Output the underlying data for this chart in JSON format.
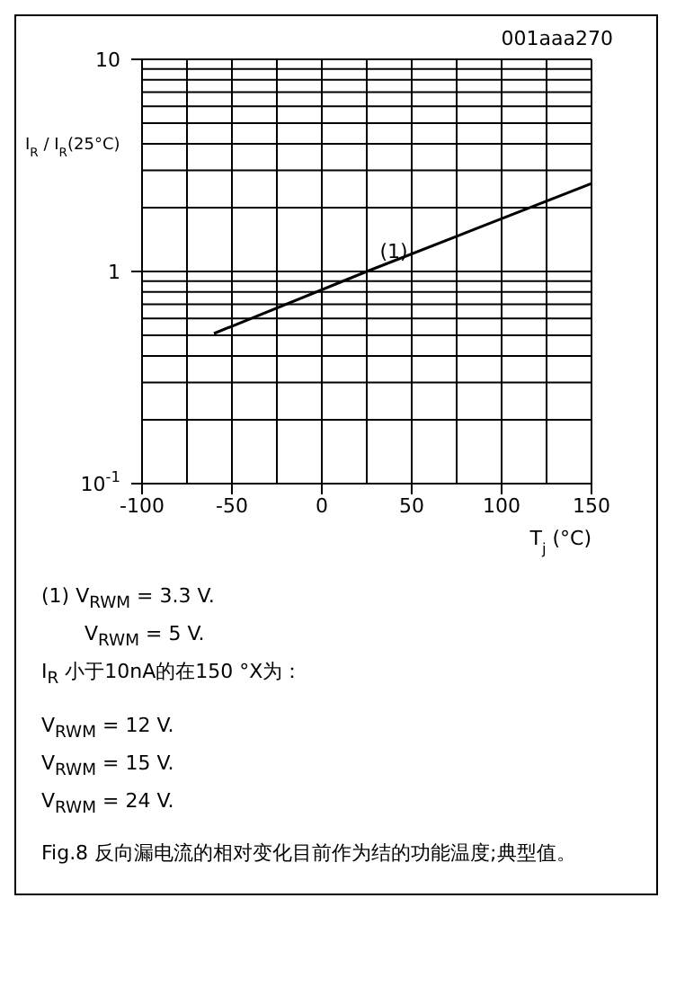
{
  "chart_data": {
    "type": "line",
    "ylabel": "I$_{R}$ / I$_{R}$(25°C)",
    "xlabel": "T$_{j}$ (°C)",
    "series": [
      {
        "color": "#000000",
        "x": [
          -60,
          25,
          150
        ],
        "values": [
          0.51,
          1.0,
          2.6
        ]
      }
    ],
    "log": "y",
    "xlim": [
      -100,
      150
    ],
    "xticks": [
      -100,
      -50,
      0,
      50,
      100,
      150
    ],
    "ylim": [
      0.1,
      10
    ],
    "yticks": [
      {
        "value": 0.1,
        "label": "10$^{-1}$"
      },
      1,
      10
    ],
    "grid": true,
    "marker": "none",
    "line_style": "solid",
    "annotations": [
      {
        "text": "(1)",
        "x": 40,
        "y": 1.25
      },
      "001aaa270",
      "(1) V$_{RWM}$ = 3.3 V.",
      "V$_{RWM}$ = 5 V.",
      "I$_{R}$ 小于10nA的在150 °X为：",
      "V$_{RWM}$ = 12 V.",
      "V$_{RWM}$ = 15 V.",
      "V$_{RWM}$ = 24 V.",
      "Fig.8 反向漏电流的相对变化目前作为结的功能温度;典型值。"
    ]
  }
}
